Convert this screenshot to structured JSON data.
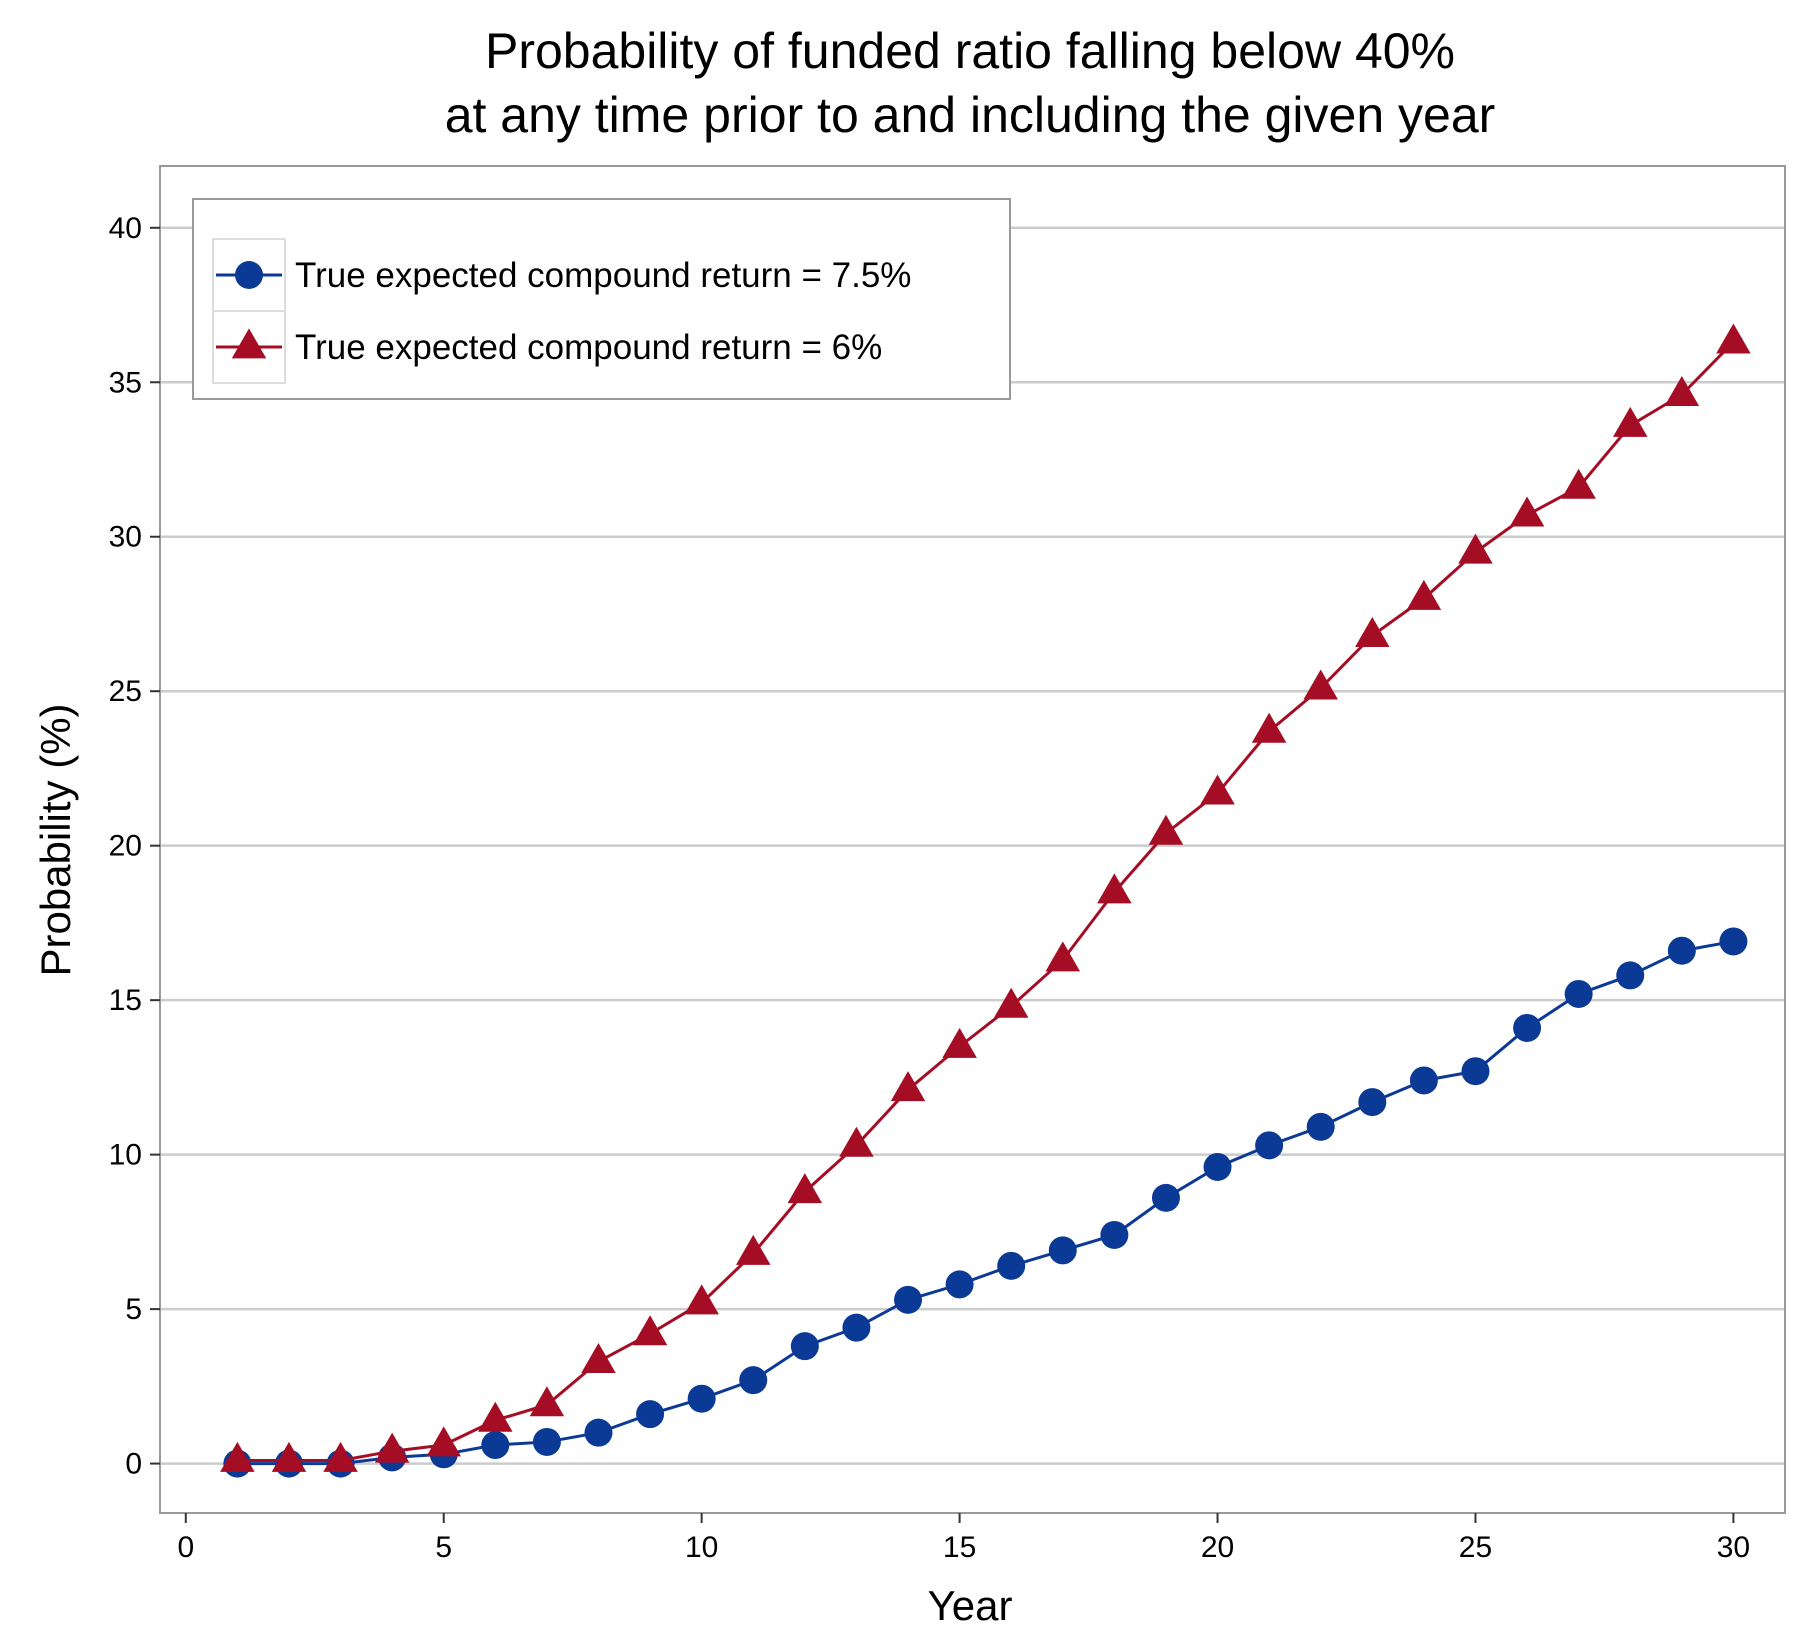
{
  "chart_data": {
    "type": "line",
    "title": "Probability of funded ratio falling below 40%",
    "subtitle": "at any time prior to and including the given year",
    "xlabel": "Year",
    "ylabel": "Probability (%)",
    "xlim": [
      -0.5,
      31
    ],
    "ylim": [
      -1.6,
      42
    ],
    "x_ticks": [
      0,
      5,
      10,
      15,
      20,
      25,
      30
    ],
    "y_ticks": [
      0,
      5,
      10,
      15,
      20,
      25,
      30,
      35,
      40
    ],
    "grid": "horizontal",
    "legend_position": "top-left",
    "x": [
      1,
      2,
      3,
      4,
      5,
      6,
      7,
      8,
      9,
      10,
      11,
      12,
      13,
      14,
      15,
      16,
      17,
      18,
      19,
      20,
      21,
      22,
      23,
      24,
      25,
      26,
      27,
      28,
      29,
      30
    ],
    "series": [
      {
        "name": "True expected compound return = 7.5%",
        "marker": "circle",
        "color": "#0b3a96",
        "values": [
          0,
          0,
          0,
          0.2,
          0.3,
          0.6,
          0.7,
          1.0,
          1.6,
          2.1,
          2.7,
          3.8,
          4.4,
          5.3,
          5.8,
          6.4,
          6.9,
          7.4,
          8.6,
          9.6,
          10.3,
          10.9,
          11.7,
          12.4,
          12.7,
          14.1,
          15.2,
          15.8,
          16.6,
          16.9
        ]
      },
      {
        "name": "True expected compound return = 6%",
        "marker": "triangle",
        "color": "#a50d25",
        "values": [
          0.1,
          0.1,
          0.1,
          0.4,
          0.6,
          1.4,
          1.9,
          3.3,
          4.2,
          5.2,
          6.8,
          8.8,
          10.3,
          12.1,
          13.5,
          14.8,
          16.3,
          18.5,
          20.4,
          21.7,
          23.7,
          25.1,
          26.8,
          28.0,
          29.5,
          30.7,
          31.6,
          33.6,
          34.6,
          36.3
        ]
      }
    ]
  },
  "colors": {
    "grid": "#cccccc",
    "frame": "#999999",
    "text": "#000000"
  }
}
